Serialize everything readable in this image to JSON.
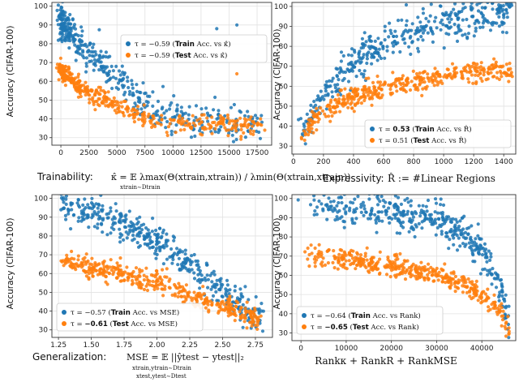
{
  "colors": {
    "train": "#1f77b4",
    "test": "#ff7f0e"
  },
  "chart_data": [
    {
      "type": "scatter",
      "id": "trainability",
      "ylabel": "Accuracy (CIFAR-100)",
      "xlabel": "Trainability: κ̂ = E[λmax(Θ(x_train,x_train)) / λmin(Θ(x_train,x_train))]",
      "xlabel_main": "Trainability:",
      "xlabel_math": "κ̂ = 𝔼 λmax(Θ(xtrain,xtrain)) / λmin(Θ(xtrain,xtrain))",
      "xlabel_sub": "xtrain∼Dtrain",
      "xlim": [
        -800,
        18800
      ],
      "ylim": [
        26,
        102
      ],
      "xticks": [
        0,
        2500,
        5000,
        7500,
        10000,
        12500,
        15000,
        17500
      ],
      "xtick_labels": [
        "0",
        "2500",
        "5000",
        "7500",
        "10000",
        "12500",
        "15000",
        "17500"
      ],
      "yticks": [
        30,
        40,
        50,
        60,
        70,
        80,
        90,
        100
      ],
      "grid": true,
      "legend_position": "upper-right",
      "series": [
        {
          "name": "τ = −0.59 (Train Acc. vs κ̂)",
          "legend_prefix": "τ = −0.59 (",
          "legend_bold": "Train",
          "legend_suffix": " Acc. vs κ̂)",
          "color_key": "train",
          "trend": [
            [
              0,
              93
            ],
            [
              1000,
              85
            ],
            [
              2500,
              75
            ],
            [
              4000,
              67
            ],
            [
              6000,
              56
            ],
            [
              8000,
              46
            ],
            [
              10000,
              41
            ],
            [
              13000,
              38
            ],
            [
              18000,
              37
            ]
          ],
          "extra_points": [
            [
              15700,
              90
            ],
            [
              13900,
              88
            ],
            [
              10200,
              33
            ]
          ]
        },
        {
          "name": "τ = −0.59 (Test Acc. vs κ̂)",
          "legend_prefix": "τ = −0.59 (",
          "legend_bold": "Test",
          "legend_suffix": " Acc. vs κ̂)",
          "color_key": "test",
          "trend": [
            [
              0,
              66
            ],
            [
              1000,
              60
            ],
            [
              2500,
              54
            ],
            [
              4000,
              50
            ],
            [
              6000,
              44
            ],
            [
              8000,
              40
            ],
            [
              10000,
              38
            ],
            [
              13000,
              37
            ],
            [
              18000,
              37
            ]
          ],
          "extra_points": [
            [
              15700,
              64
            ],
            [
              12400,
              40
            ],
            [
              16400,
              40
            ],
            [
              17800,
              40
            ]
          ]
        }
      ]
    },
    {
      "type": "scatter",
      "id": "expressivity",
      "ylabel": "Accuracy (CIFAR-100)",
      "xlabel": "Expressivity: R̂ := #Linear Regions",
      "xlabel_main": "Expressivity:",
      "xlabel_math": "R̂ := #Linear Regions",
      "xlim": [
        -10,
        1480
      ],
      "ylim": [
        26,
        102
      ],
      "xticks": [
        0,
        200,
        400,
        600,
        800,
        1000,
        1200,
        1400
      ],
      "xtick_labels": [
        "0",
        "200",
        "400",
        "600",
        "800",
        "1000",
        "1200",
        "1400"
      ],
      "yticks": [
        30,
        40,
        50,
        60,
        70,
        80,
        90,
        100
      ],
      "grid": true,
      "legend_position": "lower-right",
      "series": [
        {
          "name": "τ = 0.53 (Train Acc. vs R̂)",
          "legend_prefix": "τ = ",
          "legend_boldnum": "0.53",
          "legend_mid": " (",
          "legend_bold": "Train",
          "legend_suffix": " Acc. vs R̂)",
          "color_key": "train",
          "trend": [
            [
              60,
              36
            ],
            [
              150,
              50
            ],
            [
              300,
              64
            ],
            [
              500,
              76
            ],
            [
              700,
              84
            ],
            [
              900,
              90
            ],
            [
              1100,
              94
            ],
            [
              1300,
              96
            ],
            [
              1450,
              97
            ]
          ]
        },
        {
          "name": "τ = 0.51 (Test Acc. vs R̂)",
          "legend_prefix": "τ = 0.51 (",
          "legend_bold": "Test",
          "legend_suffix": " Acc. vs R̂)",
          "color_key": "test",
          "trend": [
            [
              60,
              34
            ],
            [
              150,
              45
            ],
            [
              300,
              52
            ],
            [
              500,
              57
            ],
            [
              700,
              61
            ],
            [
              900,
              64
            ],
            [
              1100,
              66
            ],
            [
              1300,
              68
            ],
            [
              1450,
              69
            ]
          ]
        }
      ]
    },
    {
      "type": "scatter",
      "id": "generalization",
      "ylabel": "Accuracy (CIFAR-100)",
      "xlabel": "Generalization: MSE = E ||ŷ_test − y_test||₂",
      "xlabel_main": "Generalization:",
      "xlabel_math": "MSE = 𝔼 ||ŷtest − ytest||₂",
      "xlabel_sub": "xtrain,ytrain∼Dtrain",
      "xlabel_sub2": "xtest,ytest∼Dtest",
      "xlim": [
        1.2,
        2.88
      ],
      "ylim": [
        26,
        102
      ],
      "xticks": [
        1.25,
        1.5,
        1.75,
        2.0,
        2.25,
        2.5,
        2.75
      ],
      "xtick_labels": [
        "1.25",
        "1.50",
        "1.75",
        "2.00",
        "2.25",
        "2.50",
        "2.75"
      ],
      "yticks": [
        30,
        40,
        50,
        60,
        70,
        80,
        90,
        100
      ],
      "grid": true,
      "legend_position": "lower-left",
      "series": [
        {
          "name": "τ = −0.57 (Train Acc. vs MSE)",
          "legend_prefix": "τ = −0.57 (",
          "legend_bold": "Train",
          "legend_suffix": " Acc. vs MSE)",
          "color_key": "train",
          "trend": [
            [
              1.28,
              95
            ],
            [
              1.5,
              92
            ],
            [
              1.75,
              86
            ],
            [
              2.0,
              78
            ],
            [
              2.2,
              68
            ],
            [
              2.4,
              55
            ],
            [
              2.6,
              45
            ],
            [
              2.8,
              37
            ]
          ]
        },
        {
          "name": "τ = −0.61 (Test Acc. vs MSE)",
          "legend_prefix": "τ = ",
          "legend_boldnum": "−0.61",
          "legend_mid": " (",
          "legend_bold": "Test",
          "legend_suffix": " Acc. vs MSE)",
          "color_key": "test",
          "trend": [
            [
              1.28,
              67
            ],
            [
              1.5,
              63
            ],
            [
              1.75,
              60
            ],
            [
              2.0,
              56
            ],
            [
              2.2,
              50
            ],
            [
              2.4,
              45
            ],
            [
              2.6,
              40
            ],
            [
              2.8,
              35
            ]
          ]
        }
      ]
    },
    {
      "type": "scatter",
      "id": "rank",
      "ylabel": "Accuracy (CIFAR-100)",
      "xlabel": "Rank_κ + Rank_R + Rank_MSE",
      "xlabel_math": "Rankκ + RankR + RankMSE",
      "xlim": [
        -2000,
        47500
      ],
      "ylim": [
        26,
        102
      ],
      "xticks": [
        0,
        10000,
        20000,
        30000,
        40000
      ],
      "xtick_labels": [
        "0",
        "10000",
        "20000",
        "30000",
        "40000"
      ],
      "yticks": [
        30,
        40,
        50,
        60,
        70,
        80,
        90,
        100
      ],
      "grid": true,
      "legend_position": "lower-left",
      "series": [
        {
          "name": "τ = −0.64 (Train Acc. vs Rank)",
          "legend_prefix": "τ = −0.64 (",
          "legend_bold": "Train",
          "legend_suffix": " Acc. vs Rank)",
          "color_key": "train",
          "trend": [
            [
              500,
              98
            ],
            [
              10000,
              96
            ],
            [
              20000,
              93
            ],
            [
              30000,
              88
            ],
            [
              36000,
              82
            ],
            [
              40000,
              72
            ],
            [
              43000,
              60
            ],
            [
              45000,
              45
            ],
            [
              46000,
              33
            ]
          ]
        },
        {
          "name": "τ = −0.65 (Test Acc. vs Rank)",
          "legend_prefix": "τ = ",
          "legend_boldnum": "−0.65",
          "legend_mid": " (",
          "legend_bold": "Test",
          "legend_suffix": " Acc. vs Rank)",
          "color_key": "test",
          "trend": [
            [
              500,
              70
            ],
            [
              10000,
              68
            ],
            [
              20000,
              65
            ],
            [
              30000,
              60
            ],
            [
              36000,
              56
            ],
            [
              40000,
              50
            ],
            [
              43000,
              44
            ],
            [
              45000,
              38
            ],
            [
              46000,
              31
            ]
          ]
        }
      ]
    }
  ]
}
